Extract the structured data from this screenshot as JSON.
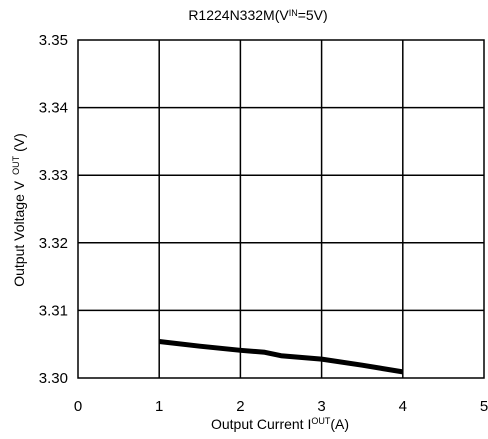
{
  "chart_data": {
    "type": "line",
    "title": {
      "prefix": "R1224N332M(V",
      "sub": "IN",
      "suffix": "=5V)"
    },
    "xlabel": {
      "prefix": "Output Current I",
      "sub": "OUT",
      "suffix": "(A)"
    },
    "ylabel": {
      "prefix": "Output Voltage V",
      "sub": "OUT",
      "suffix": "(V)"
    },
    "xlim": [
      0,
      5
    ],
    "ylim": [
      3.3,
      3.35
    ],
    "xticks": [
      0,
      1,
      2,
      3,
      4,
      5
    ],
    "xtick_labels": [
      "0",
      "1",
      "2",
      "3",
      "4",
      "5"
    ],
    "yticks": [
      3.3,
      3.31,
      3.32,
      3.33,
      3.34,
      3.35
    ],
    "ytick_labels": [
      "3.30",
      "3.31",
      "3.32",
      "3.33",
      "3.34",
      "3.35"
    ],
    "grid": true,
    "series": [
      {
        "x": [
          1.0,
          1.5,
          2.0,
          2.3,
          2.5,
          3.0,
          3.5,
          4.0
        ],
        "y": [
          3.3054,
          3.3047,
          3.3041,
          3.3038,
          3.3033,
          3.3028,
          3.3019,
          3.3009
        ],
        "color": "#000000"
      }
    ]
  }
}
